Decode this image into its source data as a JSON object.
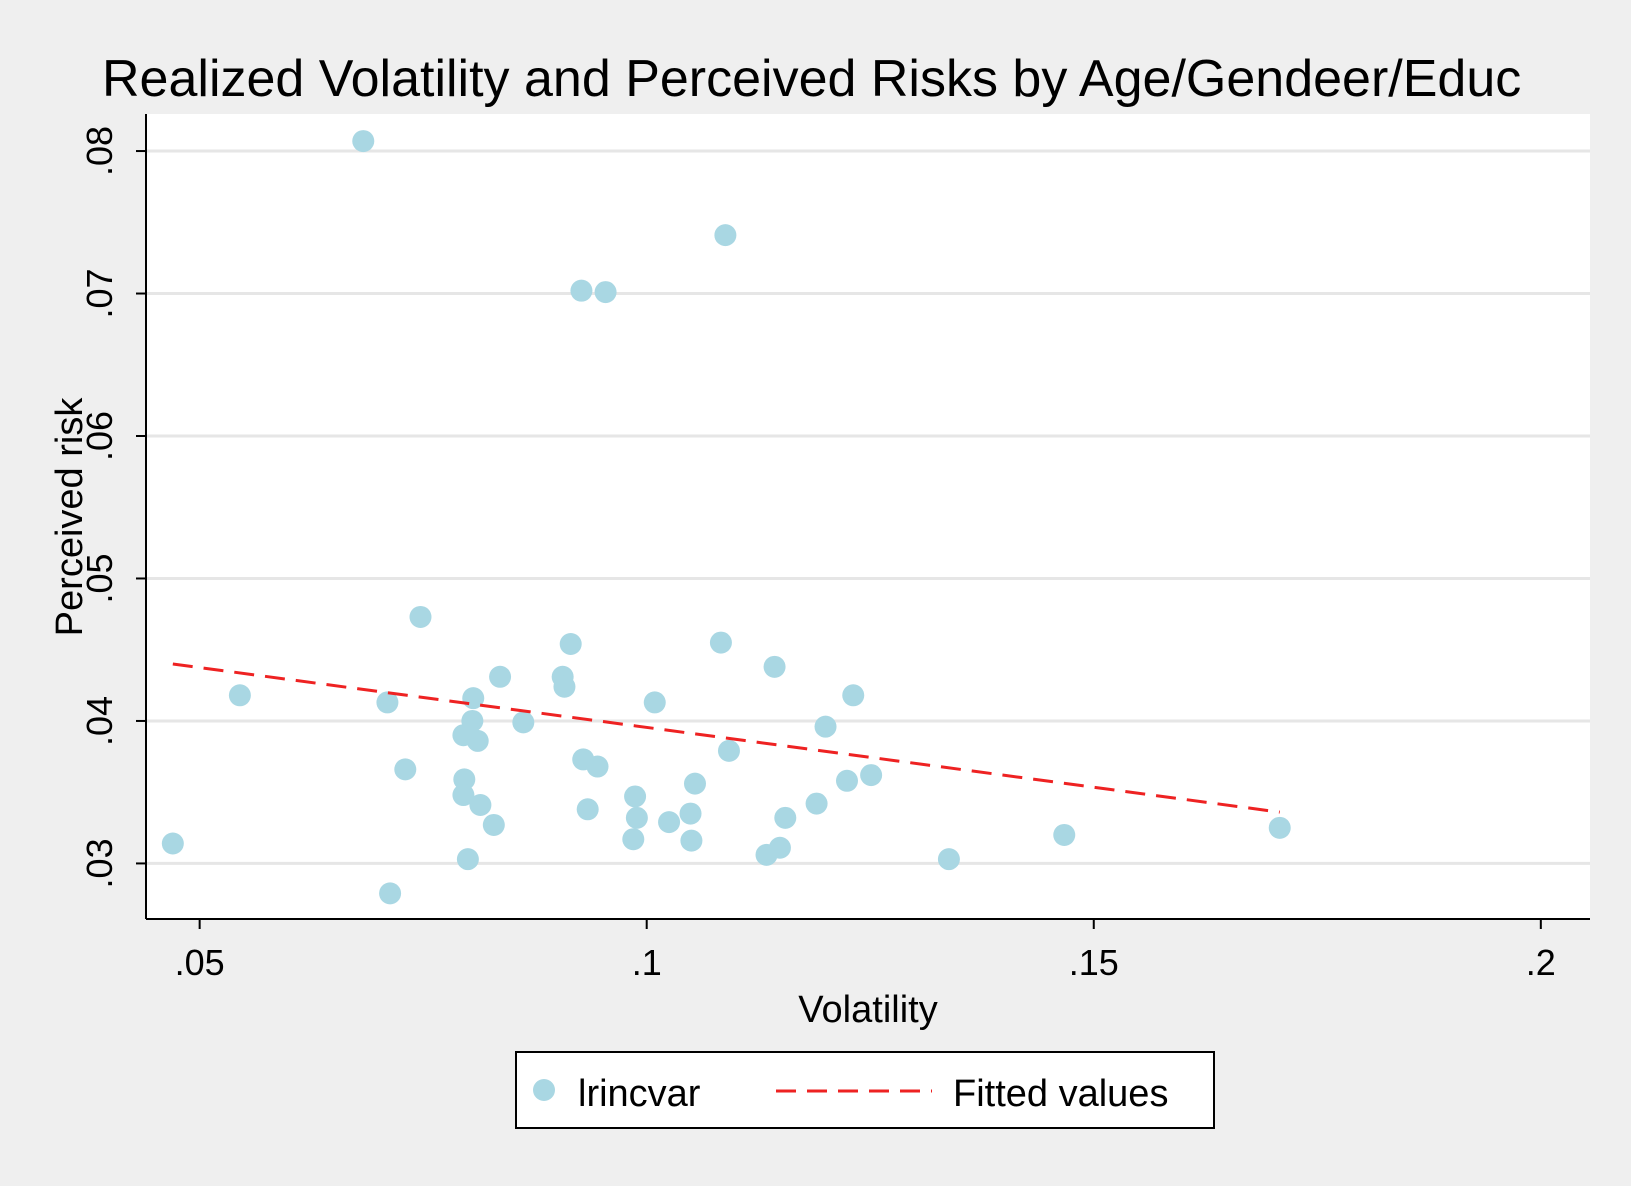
{
  "chart_data": {
    "type": "scatter",
    "title": "Realized Volatility and Perceived Risks by Age/Gendeer/Educ",
    "xlabel": "Volatility",
    "ylabel": "Perceived risk",
    "xlim": [
      0.044,
      0.2055
    ],
    "ylim": [
      0.0261,
      0.0826
    ],
    "x_ticks": [
      0.05,
      0.1,
      0.15,
      0.2
    ],
    "x_tick_labels": [
      ".05",
      ".1",
      ".15",
      ".2"
    ],
    "y_ticks": [
      0.03,
      0.04,
      0.05,
      0.06,
      0.07,
      0.08
    ],
    "y_tick_labels": [
      ".03",
      ".04",
      ".05",
      ".06",
      ".07",
      ".08"
    ],
    "grid": "horizontal",
    "legend": {
      "position": "bottom",
      "entries": [
        {
          "label": "lrincvar",
          "kind": "marker"
        },
        {
          "label": "Fitted values",
          "kind": "dashed-line"
        }
      ]
    },
    "colors": {
      "background": "#efefef",
      "plot_background": "#ffffff",
      "grid": "#e6e6e6",
      "scatter": "#a9d7e3",
      "fitted": "#ee2222",
      "axis": "#000000"
    },
    "series": [
      {
        "name": "lrincvar",
        "type": "scatter",
        "points": [
          [
            0.047,
            0.0314
          ],
          [
            0.0545,
            0.0418
          ],
          [
            0.0683,
            0.0807
          ],
          [
            0.071,
            0.0413
          ],
          [
            0.0713,
            0.0279
          ],
          [
            0.073,
            0.0366
          ],
          [
            0.0747,
            0.0473
          ],
          [
            0.0795,
            0.039
          ],
          [
            0.0796,
            0.0359
          ],
          [
            0.0795,
            0.0348
          ],
          [
            0.08,
            0.0303
          ],
          [
            0.0805,
            0.04
          ],
          [
            0.0806,
            0.0416
          ],
          [
            0.0811,
            0.0386
          ],
          [
            0.0814,
            0.0341
          ],
          [
            0.0829,
            0.0327
          ],
          [
            0.0836,
            0.0431
          ],
          [
            0.0862,
            0.0399
          ],
          [
            0.0906,
            0.0431
          ],
          [
            0.0908,
            0.0424
          ],
          [
            0.0915,
            0.0454
          ],
          [
            0.0927,
            0.0702
          ],
          [
            0.0929,
            0.0373
          ],
          [
            0.0934,
            0.0338
          ],
          [
            0.0945,
            0.0368
          ],
          [
            0.0954,
            0.0701
          ],
          [
            0.0985,
            0.0317
          ],
          [
            0.0987,
            0.0347
          ],
          [
            0.0989,
            0.0332
          ],
          [
            0.1009,
            0.0413
          ],
          [
            0.1025,
            0.0329
          ],
          [
            0.1049,
            0.0335
          ],
          [
            0.105,
            0.0316
          ],
          [
            0.1054,
            0.0356
          ],
          [
            0.1083,
            0.0455
          ],
          [
            0.1088,
            0.0741
          ],
          [
            0.1092,
            0.0379
          ],
          [
            0.1134,
            0.0306
          ],
          [
            0.1143,
            0.0438
          ],
          [
            0.1149,
            0.0311
          ],
          [
            0.1155,
            0.0332
          ],
          [
            0.119,
            0.0342
          ],
          [
            0.12,
            0.0396
          ],
          [
            0.1224,
            0.0358
          ],
          [
            0.1231,
            0.0418
          ],
          [
            0.1251,
            0.0362
          ],
          [
            0.1338,
            0.0303
          ],
          [
            0.1467,
            0.032
          ],
          [
            0.1708,
            0.0325
          ]
        ]
      },
      {
        "name": "Fitted values",
        "type": "line",
        "points": [
          [
            0.047,
            0.044
          ],
          [
            0.1708,
            0.0336
          ]
        ]
      }
    ]
  }
}
